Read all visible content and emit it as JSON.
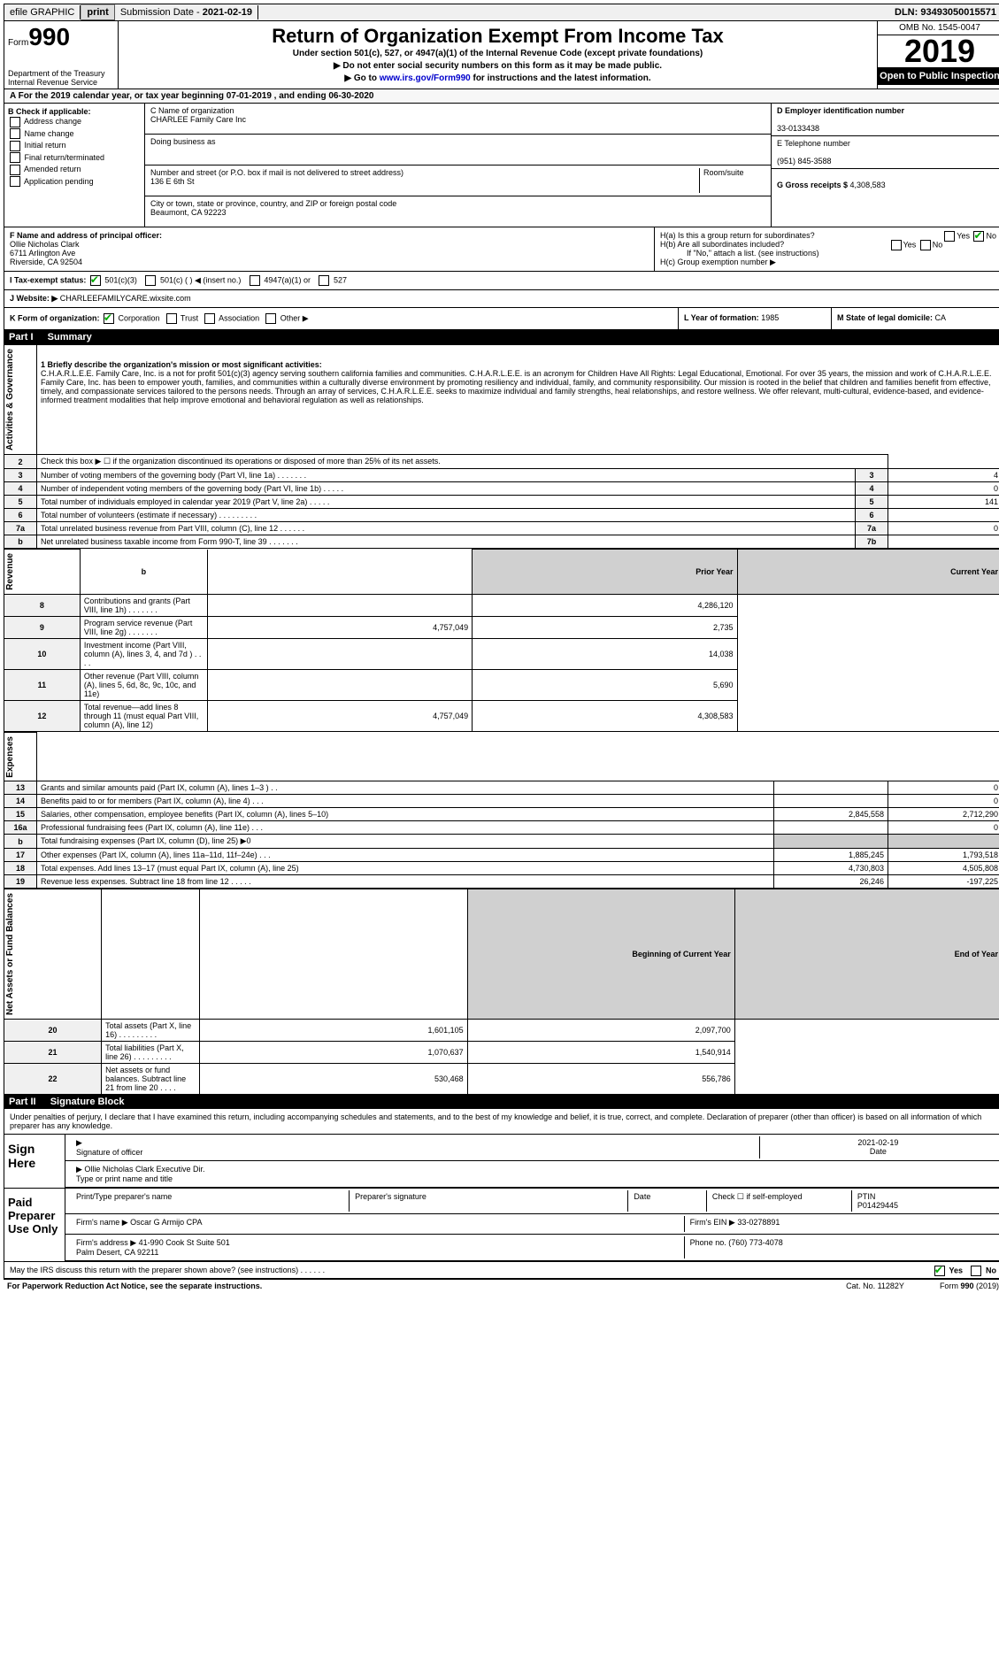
{
  "topbar": {
    "efile": "efile GRAPHIC",
    "print": "print",
    "subdate_label": "Submission Date - ",
    "subdate": "2021-02-19",
    "dln": "DLN: 93493050015571"
  },
  "header": {
    "form_prefix": "Form",
    "form_no": "990",
    "dept": "Department of the Treasury\nInternal Revenue Service",
    "title": "Return of Organization Exempt From Income Tax",
    "sub1": "Under section 501(c), 527, or 4947(a)(1) of the Internal Revenue Code (except private foundations)",
    "sub2": "▶ Do not enter social security numbers on this form as it may be made public.",
    "sub3_pre": "▶ Go to ",
    "sub3_link": "www.irs.gov/Form990",
    "sub3_post": " for instructions and the latest information.",
    "omb": "OMB No. 1545-0047",
    "year": "2019",
    "open": "Open to Public Inspection"
  },
  "period": {
    "text": "For the 2019 calendar year, or tax year beginning 07-01-2019   , and ending 06-30-2020"
  },
  "boxB": {
    "title": "B Check if applicable:",
    "opts": [
      "Address change",
      "Name change",
      "Initial return",
      "Final return/terminated",
      "Amended return",
      "Application pending"
    ]
  },
  "boxC": {
    "name_label": "C Name of organization",
    "name": "CHARLEE Family Care Inc",
    "dba_label": "Doing business as",
    "dba": "",
    "addr_label": "Number and street (or P.O. box if mail is not delivered to street address)",
    "room_label": "Room/suite",
    "addr": "136 E 6th St",
    "city_label": "City or town, state or province, country, and ZIP or foreign postal code",
    "city": "Beaumont, CA  92223"
  },
  "boxD": {
    "label": "D Employer identification number",
    "ein": "33-0133438",
    "e_label": "E Telephone number",
    "phone": "(951) 845-3588",
    "g_label": "G Gross receipts $ ",
    "gross": "4,308,583"
  },
  "boxF": {
    "label": "F  Name and address of principal officer:",
    "name": "Ollie Nicholas Clark",
    "addr1": "6711 Arlington Ave",
    "addr2": "Riverside, CA  92504"
  },
  "boxH": {
    "ha": "H(a)  Is this a group return for subordinates?",
    "hb": "H(b)  Are all subordinates included?",
    "hb_note": "If \"No,\" attach a list. (see instructions)",
    "hc": "H(c)  Group exemption number ▶",
    "yes": "Yes",
    "no": "No"
  },
  "rowI": {
    "label": "I  Tax-exempt status:",
    "opts": [
      "501(c)(3)",
      "501(c) (  ) ◀ (insert no.)",
      "4947(a)(1) or",
      "527"
    ]
  },
  "rowJ": {
    "label": "J  Website: ▶",
    "val": "CHARLEEFAMILYCARE.wixsite.com"
  },
  "rowK": {
    "label": "K Form of organization:",
    "opts": [
      "Corporation",
      "Trust",
      "Association",
      "Other ▶"
    ],
    "L_label": "L Year of formation: ",
    "L_val": "1985",
    "M_label": "M State of legal domicile: ",
    "M_val": "CA"
  },
  "part1": {
    "header": "Part I",
    "title": "Summary",
    "q1_label": "1  Briefly describe the organization's mission or most significant activities:",
    "q1_text": "C.H.A.R.L.E.E. Family Care, Inc. is a not for profit 501(c)(3) agency serving southern california families and communities. C.H.A.R.L.E.E. is an acronym for Children Have All Rights: Legal Educational, Emotional. For over 35 years, the mission and work of C.H.A.R.L.E.E. Family Care, Inc. has been to empower youth, families, and communities within a culturally diverse environment by promoting resiliency and individual, family, and community responsibility. Our mission is rooted in the belief that children and families benefit from effective, timely, and compassionate services tailored to the persons needs. Through an array of services, C.H.A.R.L.E.E. seeks to maximize individual and family strengths, heal relationships, and restore wellness. We offer relevant, multi-cultural, evidence-based, and evidence-informed treatment modalities that help improve emotional and behavioral regulation as well as relationships.",
    "side_ag": "Activities & Governance",
    "side_rev": "Revenue",
    "side_exp": "Expenses",
    "side_na": "Net Assets or Fund Balances",
    "lines_ag": [
      {
        "n": "2",
        "t": "Check this box ▶ ☐ if the organization discontinued its operations or disposed of more than 25% of its net assets.",
        "c": "",
        "v": ""
      },
      {
        "n": "3",
        "t": "Number of voting members of the governing body (Part VI, line 1a)  .     .     .     .     .     .     .",
        "c": "3",
        "v": "4"
      },
      {
        "n": "4",
        "t": "Number of independent voting members of the governing body (Part VI, line 1b)    .     .     .     .     .",
        "c": "4",
        "v": "0"
      },
      {
        "n": "5",
        "t": "Total number of individuals employed in calendar year 2019 (Part V, line 2a)    .     .     .     .     .",
        "c": "5",
        "v": "141"
      },
      {
        "n": "6",
        "t": "Total number of volunteers (estimate if necessary)   .     .     .     .     .     .     .     .     .",
        "c": "6",
        "v": ""
      },
      {
        "n": "7a",
        "t": "Total unrelated business revenue from Part VIII, column (C), line 12   .     .     .     .     .     .",
        "c": "7a",
        "v": "0"
      },
      {
        "n": "b",
        "t": "Net unrelated business taxable income from Form 990-T, line 39   .     .     .     .     .     .     .",
        "c": "7b",
        "v": ""
      }
    ],
    "col_prior": "Prior Year",
    "col_curr": "Current Year",
    "lines_rev": [
      {
        "n": "8",
        "t": "Contributions and grants (Part VIII, line 1h)   .     .     .     .     .     .     .",
        "p": "",
        "c": "4,286,120"
      },
      {
        "n": "9",
        "t": "Program service revenue (Part VIII, line 2g)   .     .     .     .     .     .     .",
        "p": "4,757,049",
        "c": "2,735"
      },
      {
        "n": "10",
        "t": "Investment income (Part VIII, column (A), lines 3, 4, and 7d )   .     .     .     .",
        "p": "",
        "c": "14,038"
      },
      {
        "n": "11",
        "t": "Other revenue (Part VIII, column (A), lines 5, 6d, 8c, 9c, 10c, and 11e)",
        "p": "",
        "c": "5,690"
      },
      {
        "n": "12",
        "t": "Total revenue—add lines 8 through 11 (must equal Part VIII, column (A), line 12)",
        "p": "4,757,049",
        "c": "4,308,583"
      }
    ],
    "lines_exp": [
      {
        "n": "13",
        "t": "Grants and similar amounts paid (Part IX, column (A), lines 1–3 )   .     .",
        "p": "",
        "c": "0"
      },
      {
        "n": "14",
        "t": "Benefits paid to or for members (Part IX, column (A), line 4)   .     .     .",
        "p": "",
        "c": "0"
      },
      {
        "n": "15",
        "t": "Salaries, other compensation, employee benefits (Part IX, column (A), lines 5–10)",
        "p": "2,845,558",
        "c": "2,712,290"
      },
      {
        "n": "16a",
        "t": "Professional fundraising fees (Part IX, column (A), line 11e)   .     .     .",
        "p": "",
        "c": "0"
      },
      {
        "n": "b",
        "t": "Total fundraising expenses (Part IX, column (D), line 25) ▶0",
        "p": "gray",
        "c": "gray"
      },
      {
        "n": "17",
        "t": "Other expenses (Part IX, column (A), lines 11a–11d, 11f–24e)   .     .     .",
        "p": "1,885,245",
        "c": "1,793,518"
      },
      {
        "n": "18",
        "t": "Total expenses. Add lines 13–17 (must equal Part IX, column (A), line 25)",
        "p": "4,730,803",
        "c": "4,505,808"
      },
      {
        "n": "19",
        "t": "Revenue less expenses. Subtract line 18 from line 12   .     .     .     .     .",
        "p": "26,246",
        "c": "-197,225"
      }
    ],
    "col_begin": "Beginning of Current Year",
    "col_end": "End of Year",
    "lines_na": [
      {
        "n": "20",
        "t": "Total assets (Part X, line 16)   .     .     .     .     .     .     .     .     .",
        "p": "1,601,105",
        "c": "2,097,700"
      },
      {
        "n": "21",
        "t": "Total liabilities (Part X, line 26)   .     .     .     .     .     .     .     .     .",
        "p": "1,070,637",
        "c": "1,540,914"
      },
      {
        "n": "22",
        "t": "Net assets or fund balances. Subtract line 21 from line 20   .     .     .     .",
        "p": "530,468",
        "c": "556,786"
      }
    ]
  },
  "part2": {
    "header": "Part II",
    "title": "Signature Block",
    "penalty": "Under penalties of perjury, I declare that I have examined this return, including accompanying schedules and statements, and to the best of my knowledge and belief, it is true, correct, and complete. Declaration of preparer (other than officer) is based on all information of which preparer has any knowledge.",
    "sign_here": "Sign Here",
    "sig_officer": "Signature of officer",
    "date": "2021-02-19",
    "date_label": "Date",
    "officer": "Ollie Nicholas Clark  Executive Dir.",
    "officer_label": "Type or print name and title",
    "paid": "Paid Preparer Use Only",
    "prep_name_label": "Print/Type preparer's name",
    "prep_sig_label": "Preparer's signature",
    "prep_date_label": "Date",
    "check_self": "Check ☐ if self-employed",
    "ptin_label": "PTIN",
    "ptin": "P01429445",
    "firm_name_label": "Firm's name   ▶",
    "firm_name": "Oscar G Armijo CPA",
    "firm_ein_label": "Firm's EIN ▶",
    "firm_ein": "33-0278891",
    "firm_addr_label": "Firm's address ▶",
    "firm_addr": "41-990 Cook St Suite 501\nPalm Desert, CA  92211",
    "phone_label": "Phone no. ",
    "phone": "(760) 773-4078",
    "discuss": "May the IRS discuss this return with the preparer shown above? (see instructions)   .     .     .     .     .     .",
    "yes": "Yes",
    "no": "No"
  },
  "footer": {
    "left": "For Paperwork Reduction Act Notice, see the separate instructions.",
    "mid": "Cat. No. 11282Y",
    "right": "Form 990 (2019)"
  }
}
